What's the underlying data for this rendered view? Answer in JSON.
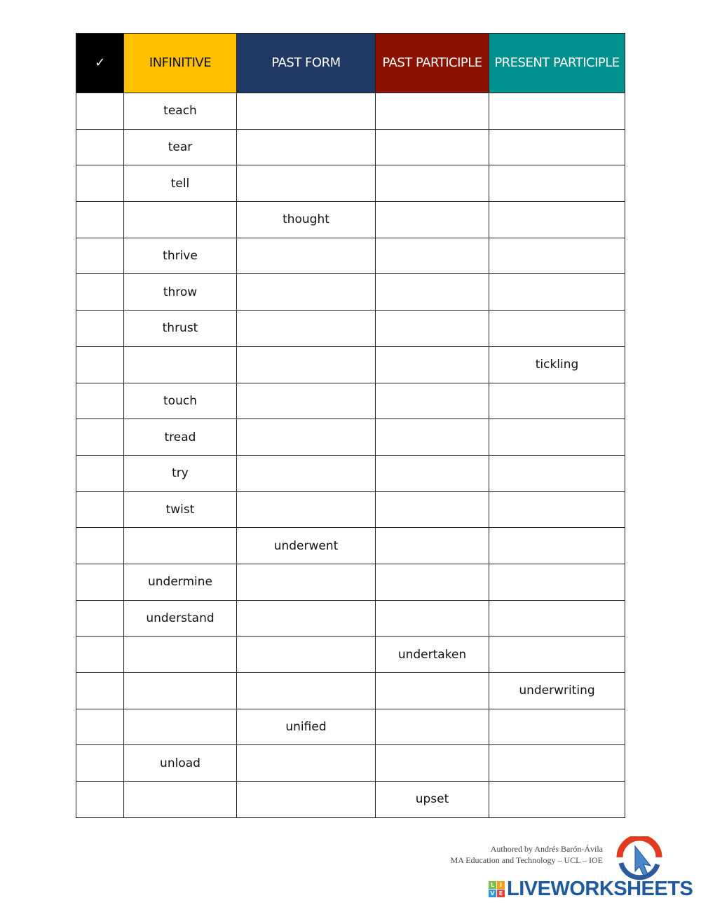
{
  "header": {
    "check": "✓",
    "columns": [
      "INFINITIVE",
      "PAST FORM",
      "PAST PARTICIPLE",
      "PRESENT PARTICIPLE"
    ],
    "colors": {
      "check": "#000000",
      "infinitive": "#ffc000",
      "past_form": "#1f3864",
      "past_participle": "#8b1100",
      "present_participle": "#00918f"
    }
  },
  "rows": [
    [
      "teach",
      "",
      "",
      ""
    ],
    [
      "tear",
      "",
      "",
      ""
    ],
    [
      "tell",
      "",
      "",
      ""
    ],
    [
      "",
      "thought",
      "",
      ""
    ],
    [
      "thrive",
      "",
      "",
      ""
    ],
    [
      "throw",
      "",
      "",
      ""
    ],
    [
      "thrust",
      "",
      "",
      ""
    ],
    [
      "",
      "",
      "",
      "tickling"
    ],
    [
      "touch",
      "",
      "",
      ""
    ],
    [
      "tread",
      "",
      "",
      ""
    ],
    [
      "try",
      "",
      "",
      ""
    ],
    [
      "twist",
      "",
      "",
      ""
    ],
    [
      "",
      "underwent",
      "",
      ""
    ],
    [
      "undermine",
      "",
      "",
      ""
    ],
    [
      "understand",
      "",
      "",
      ""
    ],
    [
      "",
      "",
      "undertaken",
      ""
    ],
    [
      "",
      "",
      "",
      "underwriting"
    ],
    [
      "",
      "unified",
      "",
      ""
    ],
    [
      "unload",
      "",
      "",
      ""
    ],
    [
      "",
      "",
      "upset",
      ""
    ]
  ],
  "footer": {
    "author": "Authored by Andrés Barón-Ávila",
    "affiliation": "MA Education and Technology – UCL – IOE",
    "brand": "LIVEWORKSHEETS",
    "logo_letters": [
      "L",
      "I",
      "V",
      "E"
    ],
    "click_logo": "CLICK LEARNING & PRACTICE"
  }
}
